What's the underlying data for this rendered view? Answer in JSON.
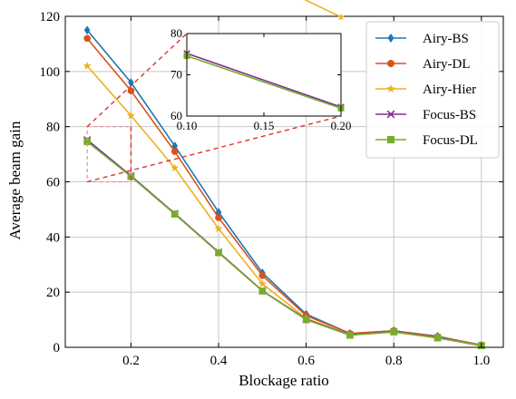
{
  "chart_data": {
    "type": "line",
    "xlabel": "Blockage ratio",
    "ylabel": "Average beam gain",
    "xlim": [
      0.05,
      1.05
    ],
    "ylim": [
      0,
      120
    ],
    "xticks": [
      0.2,
      0.4,
      0.6,
      0.8,
      1.0
    ],
    "xtick_labels": [
      "0.2",
      "0.4",
      "0.6",
      "0.8",
      "1.0"
    ],
    "yticks": [
      0,
      20,
      40,
      60,
      80,
      100,
      120
    ],
    "ytick_labels": [
      "0",
      "20",
      "40",
      "60",
      "80",
      "100",
      "120"
    ],
    "grid": true,
    "legend_position": "top-right",
    "x": [
      0.1,
      0.2,
      0.3,
      0.4,
      0.5,
      0.6,
      0.7,
      0.8,
      0.9,
      1.0
    ],
    "series": [
      {
        "name": "Airy-BS",
        "color": "#1f77b4",
        "marker": "diamond",
        "values": [
          115,
          96,
          73,
          49,
          27,
          12,
          5,
          6,
          4,
          0.8
        ]
      },
      {
        "name": "Airy-DL",
        "color": "#d95319",
        "marker": "circle",
        "values": [
          112,
          93,
          71,
          47,
          26,
          11.5,
          5,
          6,
          3.8,
          0.8
        ]
      },
      {
        "name": "Airy-Hier",
        "color": "#edb120",
        "marker": "star",
        "values": [
          102,
          84,
          65,
          43,
          23,
          10.5,
          4.5,
          5.5,
          3.5,
          0.7
        ]
      },
      {
        "name": "Focus-BS",
        "color": "#7e2f8e",
        "marker": "x",
        "values": [
          75.2,
          62.2,
          48.5,
          34.5,
          20.5,
          10.2,
          4.5,
          5.7,
          3.5,
          0.6
        ]
      },
      {
        "name": "Focus-DL",
        "color": "#77ac30",
        "marker": "square",
        "values": [
          74.6,
          61.9,
          48.3,
          34.3,
          20.4,
          10,
          4.4,
          5.6,
          3.4,
          0.6
        ]
      }
    ],
    "inset": {
      "xlim": [
        0.1,
        0.2
      ],
      "ylim": [
        60,
        80
      ],
      "xticks": [
        0.1,
        0.15,
        0.2
      ],
      "xtick_labels": [
        "0.10",
        "0.15",
        "0.20"
      ],
      "yticks": [
        60,
        70,
        80
      ],
      "ytick_labels": [
        "60",
        "70",
        "80"
      ],
      "zoom_region": {
        "x": [
          0.1,
          0.2
        ],
        "y": [
          60,
          80
        ]
      },
      "connector_color": "#e03030"
    }
  }
}
